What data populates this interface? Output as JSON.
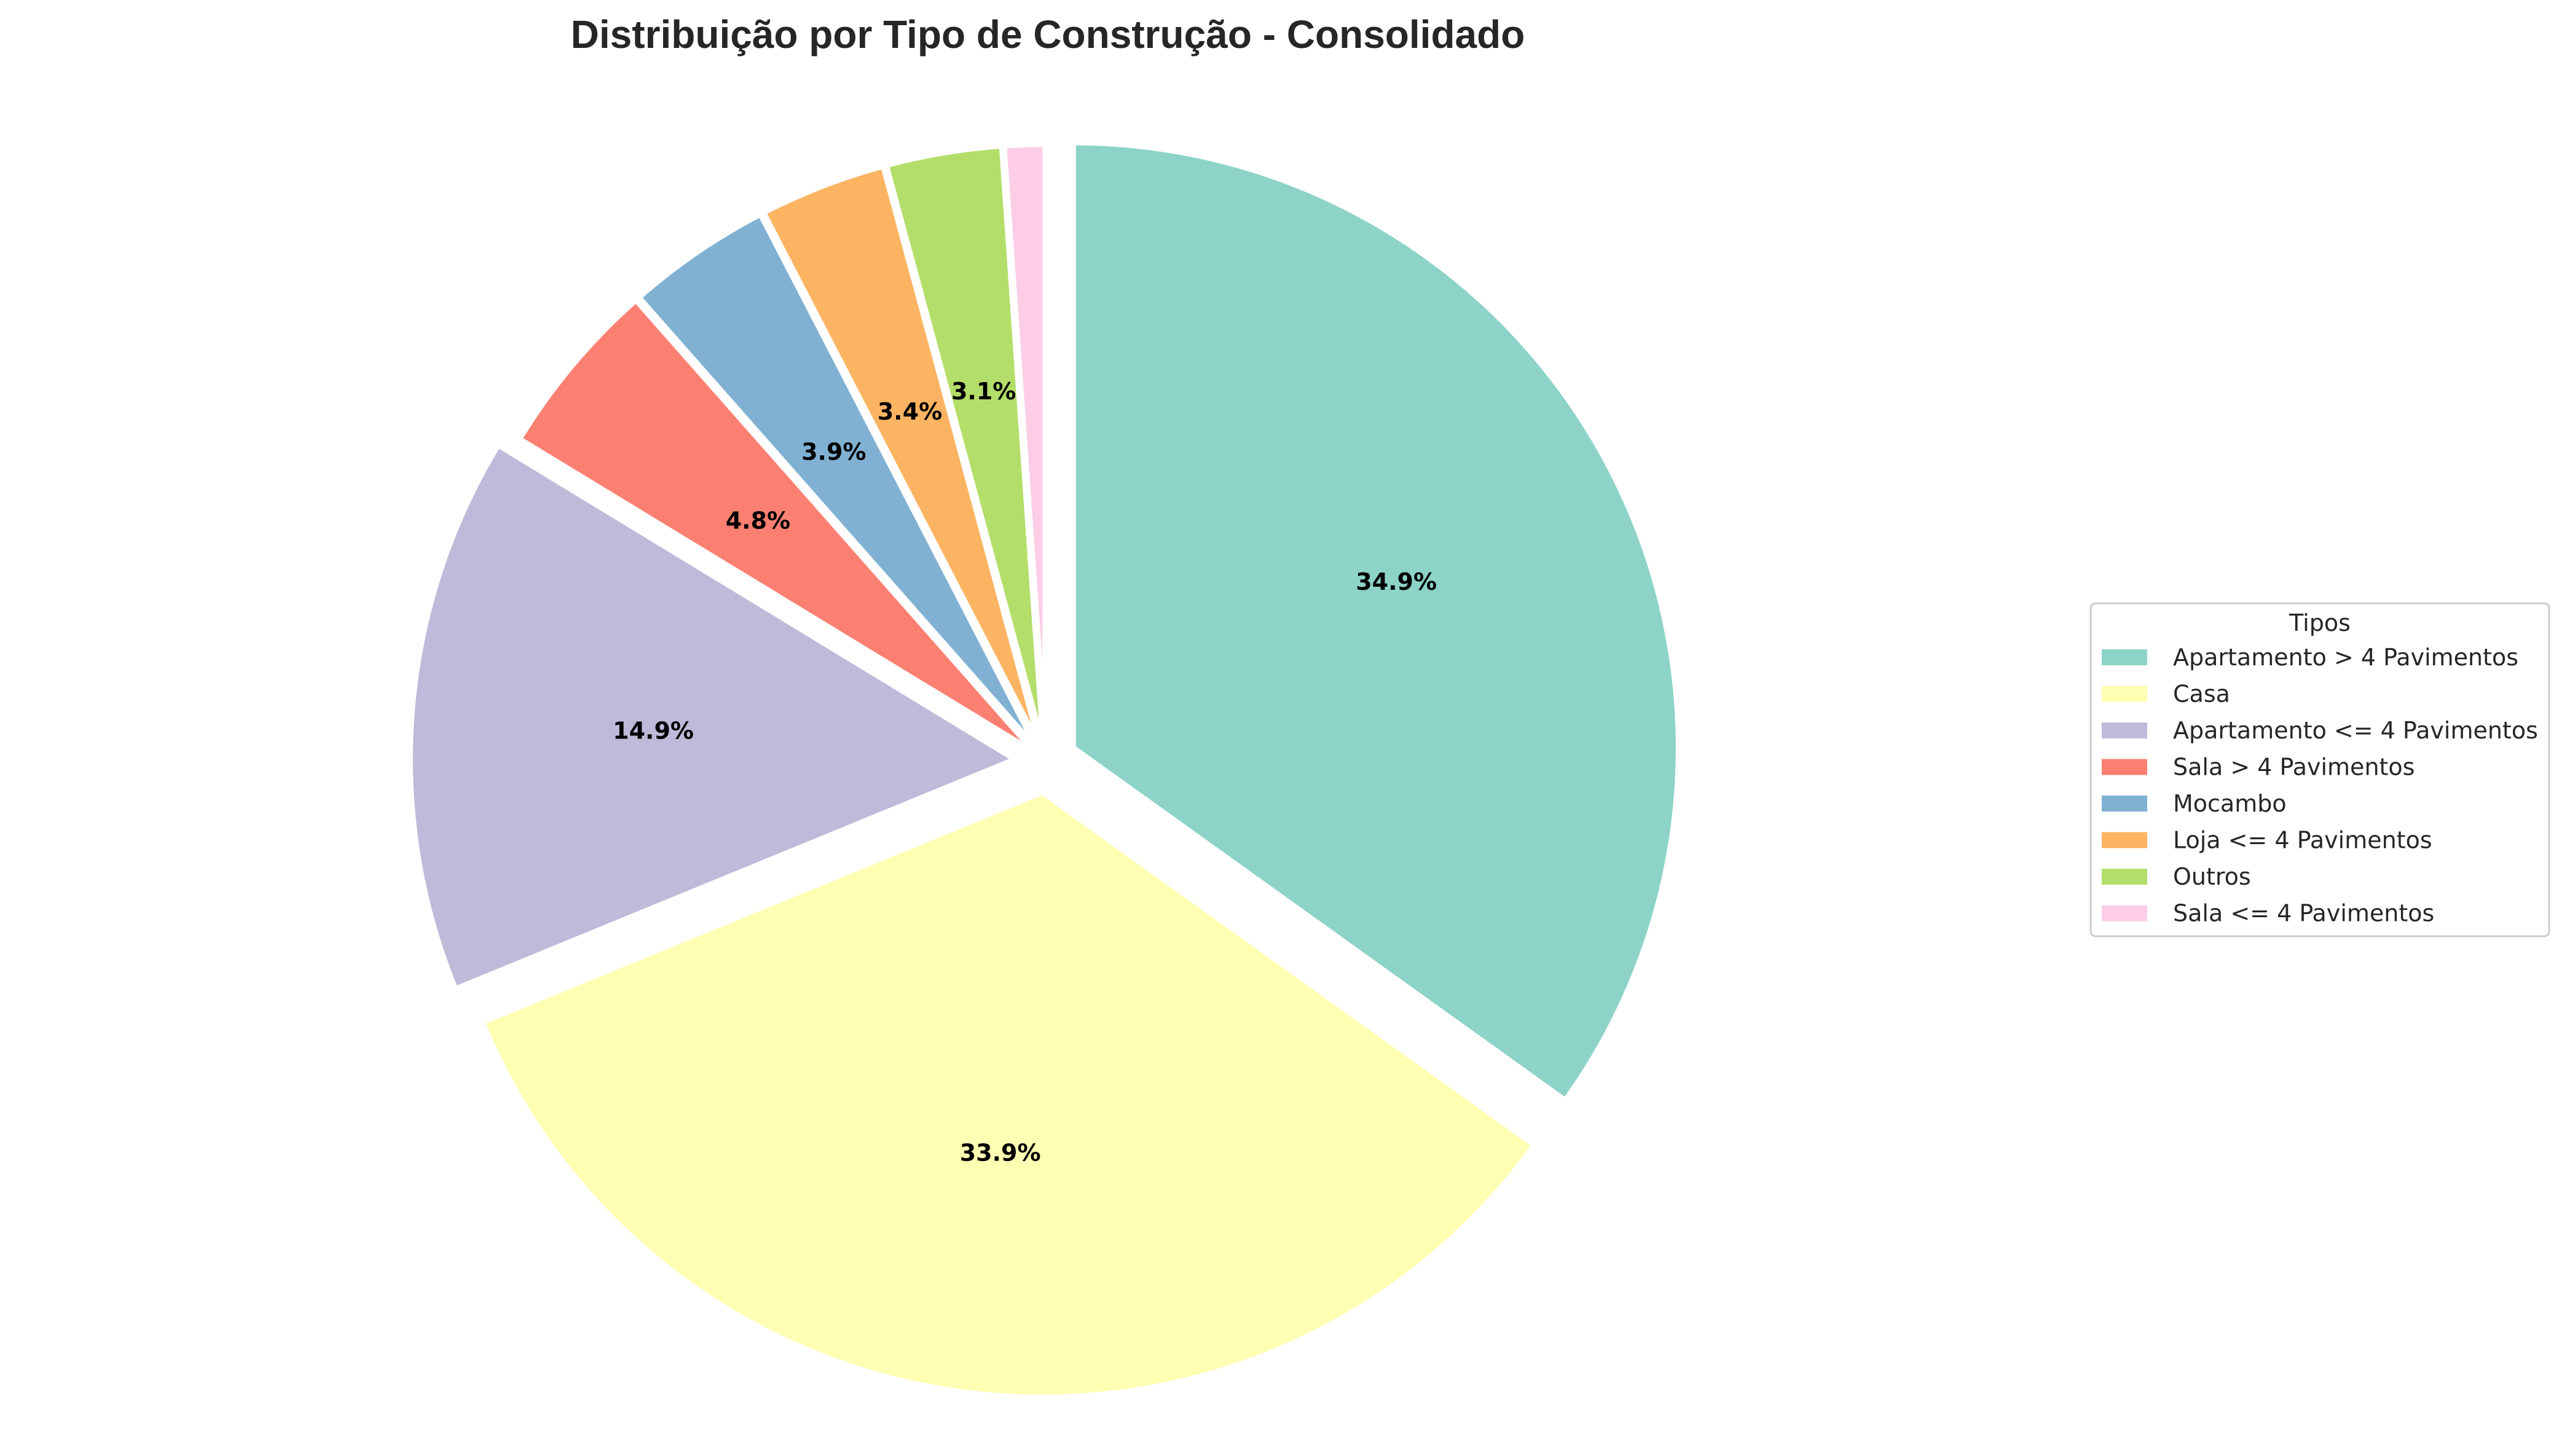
{
  "chart_data": {
    "type": "pie",
    "title": "Distribuição por Tipo de Construção - Consolidado",
    "legend_title": "Tipos",
    "legend_placement": "right",
    "start_angle_deg": 90,
    "direction": "clockwise",
    "slices": [
      {
        "label": "Apartamento > 4 Pavimentos",
        "value": 34.9,
        "pct_label": "34.9%",
        "color": "#8dd3c7"
      },
      {
        "label": "Casa",
        "value": 33.9,
        "pct_label": "33.9%",
        "color": "#ffffb3"
      },
      {
        "label": "Apartamento <= 4 Pavimentos",
        "value": 14.9,
        "pct_label": "14.9%",
        "color": "#bebada"
      },
      {
        "label": "Sala > 4 Pavimentos",
        "value": 4.8,
        "pct_label": "4.8%",
        "color": "#fb8072"
      },
      {
        "label": "Mocambo",
        "value": 3.9,
        "pct_label": "3.9%",
        "color": "#80b1d3"
      },
      {
        "label": "Loja <= 4 Pavimentos",
        "value": 3.4,
        "pct_label": "3.4%",
        "color": "#fdb462"
      },
      {
        "label": "Outros",
        "value": 3.1,
        "pct_label": "3.1%",
        "color": "#b3de69"
      },
      {
        "label": "Sala <= 4 Pavimentos",
        "value": 1.1,
        "pct_label": "",
        "color": "#fccde5"
      }
    ]
  }
}
